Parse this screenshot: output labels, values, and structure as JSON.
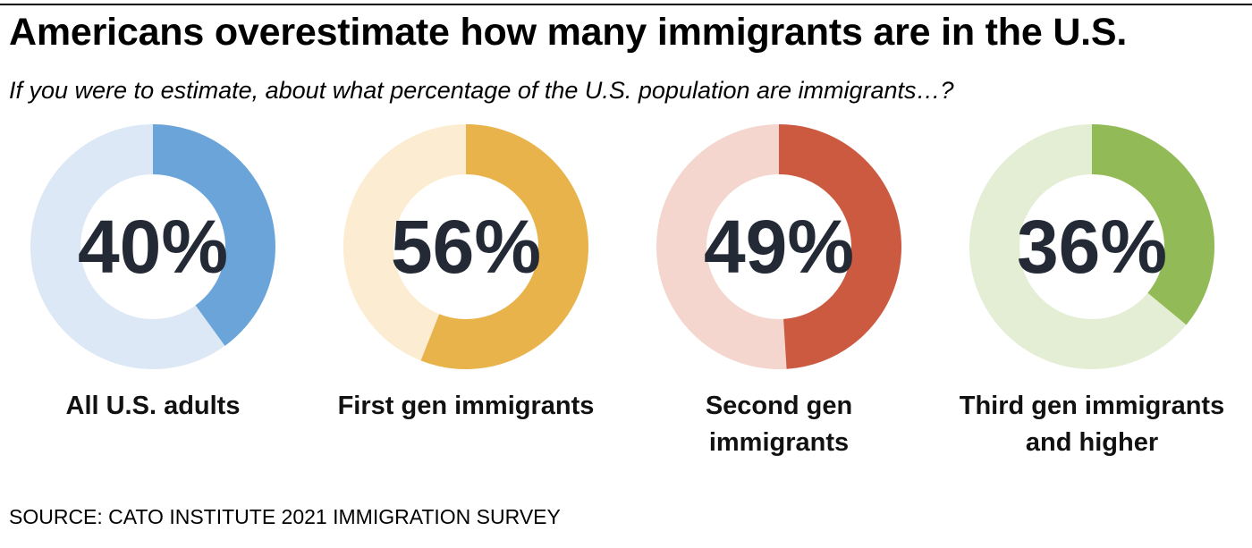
{
  "title": "Americans overestimate how many immigrants are in the U.S.",
  "subtitle": "If you were to estimate, about what percentage of the U.S. population are immigrants…?",
  "source": "SOURCE: CATO INSTITUTE 2021 IMMIGRATION SURVEY",
  "chart_data": {
    "type": "pie",
    "variant": "donut",
    "title": "Americans overestimate how many immigrants are in the U.S.",
    "question": "If you were to estimate, about what percentage of the U.S. population are immigrants…?",
    "unit": "%",
    "series": [
      {
        "name": "All U.S. adults",
        "value": 40,
        "value_label": "40%",
        "color": "#6aa4d9",
        "track_color": "#dce8f5"
      },
      {
        "name": "First gen immigrants",
        "value": 56,
        "value_label": "56%",
        "color": "#e8b34a",
        "track_color": "#fbecd2"
      },
      {
        "name": "Second gen immigrants",
        "value": 49,
        "value_label": "49%",
        "color": "#cb5a41",
        "track_color": "#f4d6cf"
      },
      {
        "name": "Third gen immigrants and higher",
        "value": 36,
        "value_label": "36%",
        "color": "#92bb58",
        "track_color": "#e3eed4"
      }
    ]
  }
}
